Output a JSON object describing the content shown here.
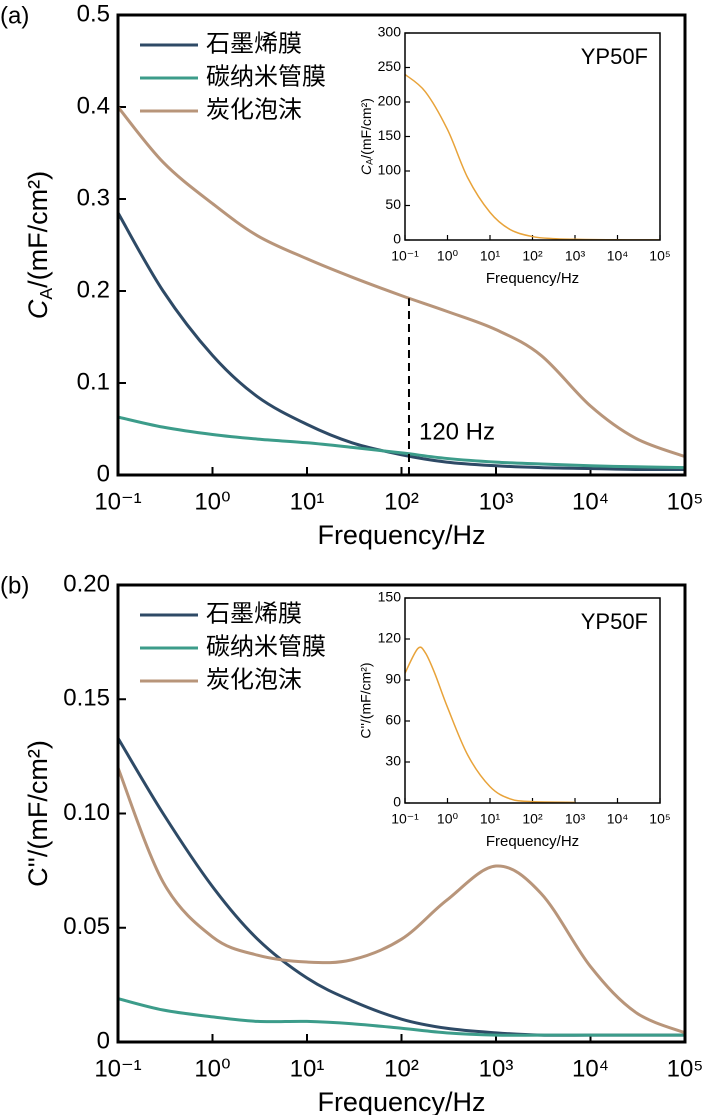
{
  "chart_data": [
    {
      "type": "line",
      "xscale": "log",
      "panel_label": "(a)",
      "xlabel": "Frequency/Hz",
      "ylabel": {
        "main": "C",
        "sub": "A",
        "rest": "/(mF/cm²)"
      },
      "x": [
        0.1,
        0.3,
        1,
        3,
        10,
        30,
        100,
        300,
        1000,
        3000,
        10000,
        30000,
        100000
      ],
      "series": [
        {
          "name": "石墨烯膜",
          "color": "#2e4a66",
          "values": [
            0.285,
            0.2,
            0.13,
            0.085,
            0.055,
            0.035,
            0.022,
            0.014,
            0.01,
            0.008,
            0.007,
            0.006,
            0.006
          ]
        },
        {
          "name": "碳纳米管膜",
          "color": "#3c9c8a",
          "values": [
            0.063,
            0.052,
            0.044,
            0.039,
            0.035,
            0.03,
            0.024,
            0.018,
            0.014,
            0.012,
            0.01,
            0.009,
            0.008
          ]
        },
        {
          "name": "炭化泡沫",
          "color": "#b8957a",
          "values": [
            0.4,
            0.34,
            0.295,
            0.26,
            0.235,
            0.215,
            0.195,
            0.178,
            0.158,
            0.13,
            0.075,
            0.04,
            0.02
          ]
        }
      ],
      "xlim": [
        0.1,
        100000
      ],
      "xticks": [
        {
          "value": 0.1,
          "label": "10⁻¹"
        },
        {
          "value": 1,
          "label": "10⁰"
        },
        {
          "value": 10,
          "label": "10¹"
        },
        {
          "value": 100,
          "label": "10²"
        },
        {
          "value": 1000,
          "label": "10³"
        },
        {
          "value": 10000,
          "label": "10⁴"
        },
        {
          "value": 100000,
          "label": "10⁵"
        }
      ],
      "ylim": [
        0,
        0.5
      ],
      "yticks": [
        0,
        0.1,
        0.2,
        0.3,
        0.4,
        0.5
      ],
      "legend": "upper left",
      "annotation": {
        "text": "120 Hz",
        "x": 120
      }
    },
    {
      "type": "line",
      "xscale": "log",
      "xlabel": "Frequency/Hz",
      "ylabel": {
        "main": "C",
        "sub": "A",
        "rest": "/(mF/cm²)"
      },
      "x": [
        0.1,
        0.3,
        1,
        3,
        10,
        30,
        100,
        300,
        1000,
        3000,
        10000,
        30000,
        100000
      ],
      "series": [
        {
          "name": "YP50F",
          "color": "#e8a33a",
          "values": [
            240,
            215,
            160,
            90,
            40,
            15,
            5,
            2,
            1,
            0.5,
            0.3,
            0.2,
            0.1
          ]
        }
      ],
      "xlim": [
        0.1,
        100000
      ],
      "xticks": [
        {
          "value": 0.1,
          "label": "10⁻¹"
        },
        {
          "value": 1,
          "label": "10⁰"
        },
        {
          "value": 10,
          "label": "10¹"
        },
        {
          "value": 100,
          "label": "10²"
        },
        {
          "value": 1000,
          "label": "10³"
        },
        {
          "value": 10000,
          "label": "10⁴"
        },
        {
          "value": 100000,
          "label": "10⁵"
        }
      ],
      "ylim": [
        0,
        300
      ],
      "yticks": [
        0,
        50,
        100,
        150,
        200,
        250,
        300
      ],
      "legend": "upper right"
    },
    {
      "type": "line",
      "xscale": "log",
      "panel_label": "(b)",
      "xlabel": "Frequency/Hz",
      "ylabel": "C''/(mF/cm²)",
      "x": [
        0.1,
        0.3,
        1,
        3,
        10,
        30,
        100,
        300,
        1000,
        3000,
        10000,
        30000,
        100000
      ],
      "series": [
        {
          "name": "石墨烯膜",
          "color": "#2e4a66",
          "values": [
            0.133,
            0.1,
            0.068,
            0.045,
            0.028,
            0.018,
            0.01,
            0.006,
            0.004,
            0.003,
            0.003,
            0.003,
            0.003
          ]
        },
        {
          "name": "碳纳米管膜",
          "color": "#3c9c8a",
          "values": [
            0.019,
            0.014,
            0.011,
            0.009,
            0.009,
            0.008,
            0.006,
            0.004,
            0.003,
            0.003,
            0.003,
            0.003,
            0.003
          ]
        },
        {
          "name": "炭化泡沫",
          "color": "#b8957a",
          "values": [
            0.12,
            0.07,
            0.046,
            0.038,
            0.035,
            0.036,
            0.045,
            0.062,
            0.077,
            0.065,
            0.033,
            0.013,
            0.004
          ]
        }
      ],
      "xlim": [
        0.1,
        100000
      ],
      "xticks": [
        {
          "value": 0.1,
          "label": "10⁻¹"
        },
        {
          "value": 1,
          "label": "10⁰"
        },
        {
          "value": 10,
          "label": "10¹"
        },
        {
          "value": 100,
          "label": "10²"
        },
        {
          "value": 1000,
          "label": "10³"
        },
        {
          "value": 10000,
          "label": "10⁴"
        },
        {
          "value": 100000,
          "label": "10⁵"
        }
      ],
      "ylim": [
        0,
        0.2
      ],
      "yticks": [
        0,
        0.05,
        {
          "value": 0.1,
          "label": "0.10"
        },
        0.15,
        {
          "value": 0.2,
          "label": "0.20"
        }
      ],
      "legend": "upper left"
    },
    {
      "type": "line",
      "xscale": "log",
      "xlabel": "Frequency/Hz",
      "ylabel": "C''/(mF/cm²)",
      "x": [
        0.1,
        0.2,
        0.3,
        0.5,
        1,
        3,
        10,
        30,
        100,
        1000
      ],
      "series": [
        {
          "name": "YP50F",
          "color": "#e8a33a",
          "values": [
            95,
            113,
            110,
            95,
            70,
            35,
            12,
            3,
            1,
            0.5
          ]
        }
      ],
      "xlim": [
        0.1,
        100000
      ],
      "xticks": [
        {
          "value": 0.1,
          "label": "10⁻¹"
        },
        {
          "value": 1,
          "label": "10⁰"
        },
        {
          "value": 10,
          "label": "10¹"
        },
        {
          "value": 100,
          "label": "10²"
        },
        {
          "value": 1000,
          "label": "10³"
        },
        {
          "value": 10000,
          "label": "10⁴"
        },
        {
          "value": 100000,
          "label": "10⁵"
        }
      ],
      "ylim": [
        0,
        150
      ],
      "yticks": [
        0,
        30,
        60,
        90,
        120,
        150
      ],
      "legend": "upper right"
    }
  ]
}
